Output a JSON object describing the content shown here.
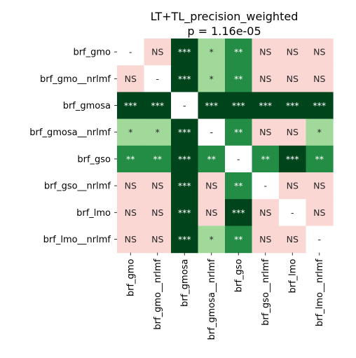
{
  "chart_data": {
    "type": "heatmap",
    "title": "LT+TL_precision_weighted",
    "subtitle": "p = 1.16e-05",
    "rows": [
      "brf_gmo",
      "brf_gmo__nrlmf",
      "brf_gmosa",
      "brf_gmosa__nrlmf",
      "brf_gso",
      "brf_gso__nrlmf",
      "brf_lmo",
      "brf_lmo__nrlmf"
    ],
    "columns": [
      "brf_gmo",
      "brf_gmo__nrlmf",
      "brf_gmosa",
      "brf_gmosa__nrlmf",
      "brf_gso",
      "brf_gso__nrlmf",
      "brf_lmo",
      "brf_lmo__nrlmf"
    ],
    "cells": [
      [
        "-",
        "NS",
        "***",
        "*",
        "**",
        "NS",
        "NS",
        "NS"
      ],
      [
        "NS",
        "-",
        "***",
        "*",
        "**",
        "NS",
        "NS",
        "NS"
      ],
      [
        "***",
        "***",
        "-",
        "***",
        "***",
        "***",
        "***",
        "***"
      ],
      [
        "*",
        "*",
        "***",
        "-",
        "**",
        "NS",
        "NS",
        "*"
      ],
      [
        "**",
        "**",
        "***",
        "**",
        "-",
        "**",
        "***",
        "**"
      ],
      [
        "NS",
        "NS",
        "***",
        "NS",
        "**",
        "-",
        "NS",
        "NS"
      ],
      [
        "NS",
        "NS",
        "***",
        "NS",
        "***",
        "NS",
        "-",
        "NS"
      ],
      [
        "NS",
        "NS",
        "***",
        "*",
        "**",
        "NS",
        "NS",
        "-"
      ]
    ],
    "level_colors": {
      "-": "#ffffff",
      "NS": "#fbd7d4",
      "*": "#a0d99a",
      "**": "#238c45",
      "***": "#00441b"
    },
    "level_text_colors": {
      "-": "#262626",
      "NS": "#262626",
      "*": "#262626",
      "**": "#ffffff",
      "***": "#ffffff"
    },
    "legend": false,
    "grid": false
  }
}
